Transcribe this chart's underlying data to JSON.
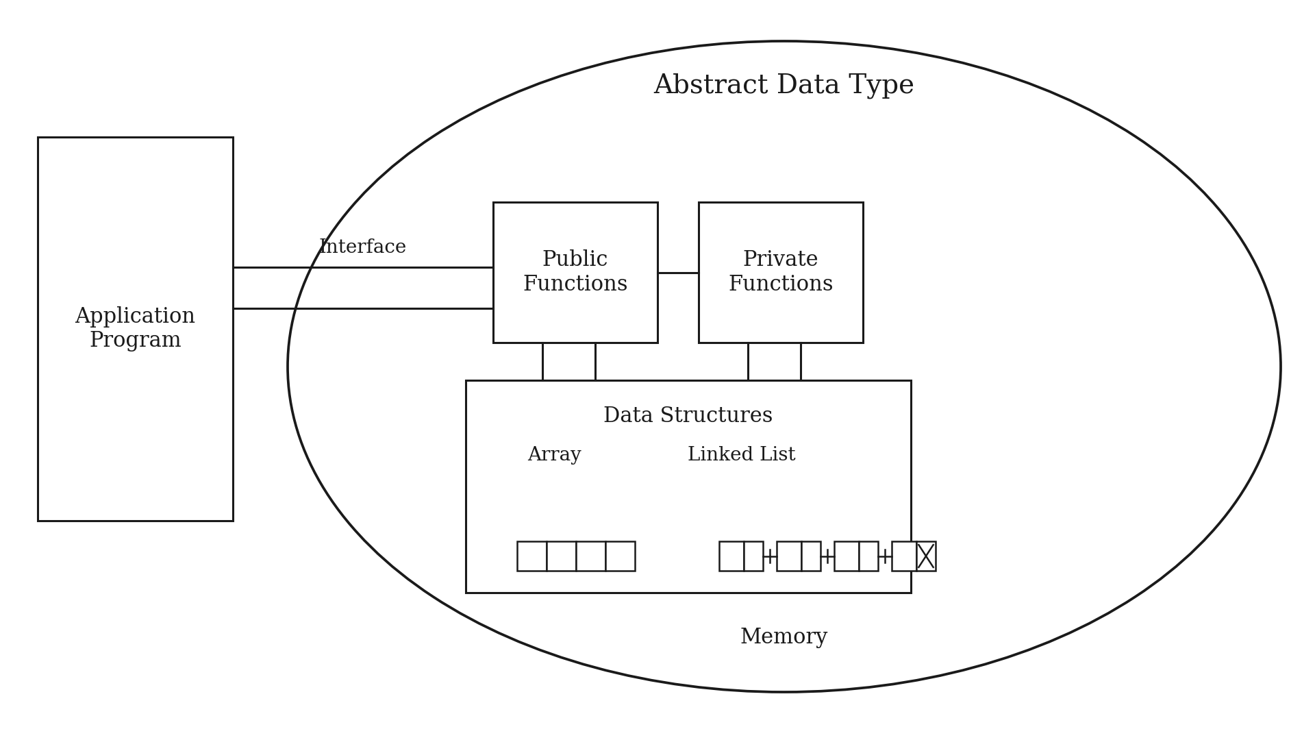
{
  "bg_color": "#ffffff",
  "title": "Abstract Data Type",
  "memory_label": "Memory",
  "app_label": "Application\nProgram",
  "interface_label": "Interface",
  "public_label": "Public\nFunctions",
  "private_label": "Private\nFunctions",
  "data_struct_label": "Data Structures",
  "array_label": "Array",
  "linked_list_label": "Linked List",
  "line_color": "#1a1a1a",
  "box_color": "#ffffff",
  "font_size_title": 28,
  "font_size_main": 22,
  "font_size_small": 20
}
